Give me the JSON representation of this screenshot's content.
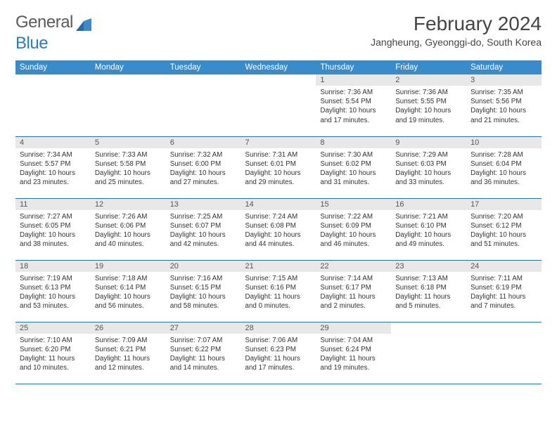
{
  "logo": {
    "text_a": "General",
    "text_b": "Blue"
  },
  "title": "February 2024",
  "location": "Jangheung, Gyeonggi-do, South Korea",
  "colors": {
    "header_bg": "#3b8bc9",
    "header_text": "#ffffff",
    "row_divider": "#2b6fa8",
    "daynum_bg": "#e8e8e8",
    "text": "#333333",
    "logo_gray": "#5a5a5a",
    "logo_blue": "#2b7bbf"
  },
  "fonts": {
    "title_size": 28,
    "location_size": 14,
    "th_size": 11.5,
    "cell_size": 9.8
  },
  "weekdays": [
    "Sunday",
    "Monday",
    "Tuesday",
    "Wednesday",
    "Thursday",
    "Friday",
    "Saturday"
  ],
  "weeks": [
    [
      {
        "n": "",
        "sr": "",
        "ss": "",
        "dl": ""
      },
      {
        "n": "",
        "sr": "",
        "ss": "",
        "dl": ""
      },
      {
        "n": "",
        "sr": "",
        "ss": "",
        "dl": ""
      },
      {
        "n": "",
        "sr": "",
        "ss": "",
        "dl": ""
      },
      {
        "n": "1",
        "sr": "7:36 AM",
        "ss": "5:54 PM",
        "dl": "10 hours and 17 minutes."
      },
      {
        "n": "2",
        "sr": "7:36 AM",
        "ss": "5:55 PM",
        "dl": "10 hours and 19 minutes."
      },
      {
        "n": "3",
        "sr": "7:35 AM",
        "ss": "5:56 PM",
        "dl": "10 hours and 21 minutes."
      }
    ],
    [
      {
        "n": "4",
        "sr": "7:34 AM",
        "ss": "5:57 PM",
        "dl": "10 hours and 23 minutes."
      },
      {
        "n": "5",
        "sr": "7:33 AM",
        "ss": "5:58 PM",
        "dl": "10 hours and 25 minutes."
      },
      {
        "n": "6",
        "sr": "7:32 AM",
        "ss": "6:00 PM",
        "dl": "10 hours and 27 minutes."
      },
      {
        "n": "7",
        "sr": "7:31 AM",
        "ss": "6:01 PM",
        "dl": "10 hours and 29 minutes."
      },
      {
        "n": "8",
        "sr": "7:30 AM",
        "ss": "6:02 PM",
        "dl": "10 hours and 31 minutes."
      },
      {
        "n": "9",
        "sr": "7:29 AM",
        "ss": "6:03 PM",
        "dl": "10 hours and 33 minutes."
      },
      {
        "n": "10",
        "sr": "7:28 AM",
        "ss": "6:04 PM",
        "dl": "10 hours and 36 minutes."
      }
    ],
    [
      {
        "n": "11",
        "sr": "7:27 AM",
        "ss": "6:05 PM",
        "dl": "10 hours and 38 minutes."
      },
      {
        "n": "12",
        "sr": "7:26 AM",
        "ss": "6:06 PM",
        "dl": "10 hours and 40 minutes."
      },
      {
        "n": "13",
        "sr": "7:25 AM",
        "ss": "6:07 PM",
        "dl": "10 hours and 42 minutes."
      },
      {
        "n": "14",
        "sr": "7:24 AM",
        "ss": "6:08 PM",
        "dl": "10 hours and 44 minutes."
      },
      {
        "n": "15",
        "sr": "7:22 AM",
        "ss": "6:09 PM",
        "dl": "10 hours and 46 minutes."
      },
      {
        "n": "16",
        "sr": "7:21 AM",
        "ss": "6:10 PM",
        "dl": "10 hours and 49 minutes."
      },
      {
        "n": "17",
        "sr": "7:20 AM",
        "ss": "6:12 PM",
        "dl": "10 hours and 51 minutes."
      }
    ],
    [
      {
        "n": "18",
        "sr": "7:19 AM",
        "ss": "6:13 PM",
        "dl": "10 hours and 53 minutes."
      },
      {
        "n": "19",
        "sr": "7:18 AM",
        "ss": "6:14 PM",
        "dl": "10 hours and 56 minutes."
      },
      {
        "n": "20",
        "sr": "7:16 AM",
        "ss": "6:15 PM",
        "dl": "10 hours and 58 minutes."
      },
      {
        "n": "21",
        "sr": "7:15 AM",
        "ss": "6:16 PM",
        "dl": "11 hours and 0 minutes."
      },
      {
        "n": "22",
        "sr": "7:14 AM",
        "ss": "6:17 PM",
        "dl": "11 hours and 2 minutes."
      },
      {
        "n": "23",
        "sr": "7:13 AM",
        "ss": "6:18 PM",
        "dl": "11 hours and 5 minutes."
      },
      {
        "n": "24",
        "sr": "7:11 AM",
        "ss": "6:19 PM",
        "dl": "11 hours and 7 minutes."
      }
    ],
    [
      {
        "n": "25",
        "sr": "7:10 AM",
        "ss": "6:20 PM",
        "dl": "11 hours and 10 minutes."
      },
      {
        "n": "26",
        "sr": "7:09 AM",
        "ss": "6:21 PM",
        "dl": "11 hours and 12 minutes."
      },
      {
        "n": "27",
        "sr": "7:07 AM",
        "ss": "6:22 PM",
        "dl": "11 hours and 14 minutes."
      },
      {
        "n": "28",
        "sr": "7:06 AM",
        "ss": "6:23 PM",
        "dl": "11 hours and 17 minutes."
      },
      {
        "n": "29",
        "sr": "7:04 AM",
        "ss": "6:24 PM",
        "dl": "11 hours and 19 minutes."
      },
      {
        "n": "",
        "sr": "",
        "ss": "",
        "dl": ""
      },
      {
        "n": "",
        "sr": "",
        "ss": "",
        "dl": ""
      }
    ]
  ],
  "labels": {
    "sunrise": "Sunrise:",
    "sunset": "Sunset:",
    "daylight": "Daylight:"
  }
}
